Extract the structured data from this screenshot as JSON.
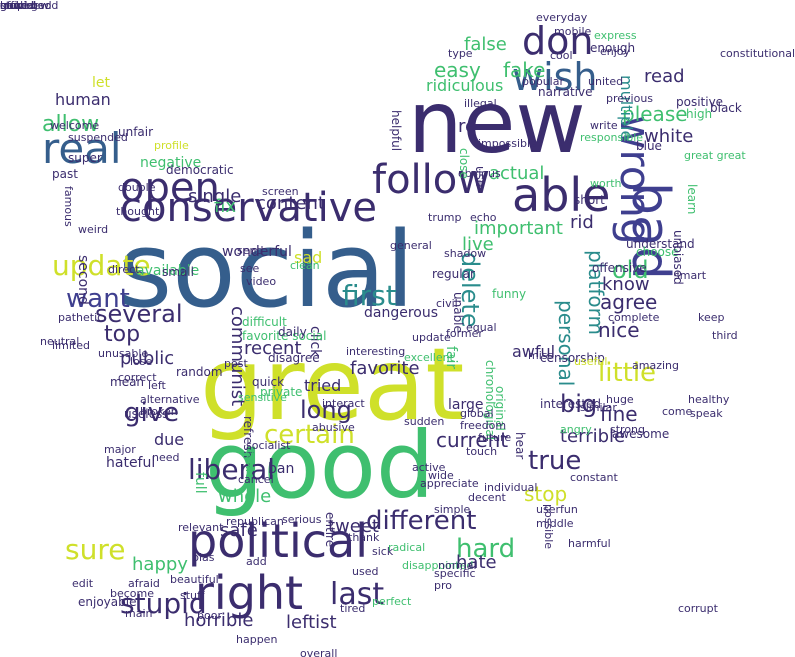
{
  "palette": {
    "purple": "#3b2d6e",
    "indigo": "#3f3f8f",
    "blue": "#355e8c",
    "teal": "#2a8c8c",
    "green": "#3fbf6f",
    "lime": "#cfe02a",
    "lightgreen": "#7ccf4f"
  },
  "words": [
    {
      "text": "social",
      "color": "#355e8c"
    },
    {
      "text": "new",
      "color": "#3b2d6e"
    },
    {
      "text": "great",
      "color": "#cfe02a"
    },
    {
      "text": "good",
      "color": "#3fbf6f"
    },
    {
      "text": "conservative",
      "color": "#3b2d6e"
    },
    {
      "text": "political",
      "color": "#3b2d6e"
    },
    {
      "text": "right",
      "color": "#3b2d6e"
    },
    {
      "text": "follow",
      "color": "#3b2d6e"
    },
    {
      "text": "able",
      "color": "#3b2d6e"
    },
    {
      "text": "bad",
      "color": "#3f3f8f"
    },
    {
      "text": "wrong",
      "color": "#3f3f8f"
    },
    {
      "text": "open",
      "color": "#3b2d6e"
    },
    {
      "text": "real",
      "color": "#355e8c"
    },
    {
      "text": "don",
      "color": "#3b2d6e"
    },
    {
      "text": "wish",
      "color": "#355e8c"
    },
    {
      "text": "different",
      "color": "#3b2d6e"
    },
    {
      "text": "update",
      "color": "#cfe02a"
    },
    {
      "text": "first",
      "color": "#2a8c8c"
    },
    {
      "text": "delete",
      "color": "#2a8c8c"
    },
    {
      "text": "last",
      "color": "#3b2d6e"
    },
    {
      "text": "liberal",
      "color": "#3b2d6e"
    },
    {
      "text": "sure",
      "color": "#cfe02a"
    },
    {
      "text": "certain",
      "color": "#cfe02a"
    },
    {
      "text": "stupid",
      "color": "#3b2d6e"
    },
    {
      "text": "give",
      "color": "#3b2d6e"
    },
    {
      "text": "long",
      "color": "#3b2d6e"
    },
    {
      "text": "true",
      "color": "#3b2d6e"
    },
    {
      "text": "big",
      "color": "#3b2d6e"
    },
    {
      "text": "little",
      "color": "#cfe02a"
    },
    {
      "text": "old",
      "color": "#3fbf6f"
    },
    {
      "text": "hard",
      "color": "#3fbf6f"
    },
    {
      "text": "easy",
      "color": "#3fbf6f"
    },
    {
      "text": "fake",
      "color": "#3fbf6f"
    },
    {
      "text": "allow",
      "color": "#3fbf6f"
    },
    {
      "text": "want",
      "color": "#3f3f8f"
    },
    {
      "text": "top",
      "color": "#3b2d6e"
    },
    {
      "text": "several",
      "color": "#3b2d6e"
    },
    {
      "text": "ridiculous",
      "color": "#3fbf6f"
    },
    {
      "text": "false",
      "color": "#3fbf6f"
    },
    {
      "text": "please",
      "color": "#3fbf6f"
    },
    {
      "text": "read",
      "color": "#3b2d6e"
    },
    {
      "text": "white",
      "color": "#3b2d6e"
    },
    {
      "text": "multiple",
      "color": "#2a8c8c"
    },
    {
      "text": "personal",
      "color": "#2a8c8c"
    },
    {
      "text": "platform",
      "color": "#2a8c8c"
    },
    {
      "text": "agree",
      "color": "#3b2d6e"
    },
    {
      "text": "know",
      "color": "#3b2d6e"
    },
    {
      "text": "nice",
      "color": "#3b2d6e"
    },
    {
      "text": "fine",
      "color": "#3b2d6e"
    },
    {
      "text": "terrible",
      "color": "#3b2d6e"
    },
    {
      "text": "stop",
      "color": "#cfe02a"
    },
    {
      "text": "hate",
      "color": "#3b2d6e"
    },
    {
      "text": "tweet",
      "color": "#3b2d6e"
    },
    {
      "text": "leftist",
      "color": "#3b2d6e"
    },
    {
      "text": "horrible",
      "color": "#3b2d6e"
    },
    {
      "text": "happy",
      "color": "#3fbf6f"
    },
    {
      "text": "whole",
      "color": "#3fbf6f"
    },
    {
      "text": "safe",
      "color": "#3b2d6e"
    },
    {
      "text": "current",
      "color": "#3b2d6e"
    },
    {
      "text": "communist",
      "color": "#3b2d6e"
    },
    {
      "text": "content",
      "color": "#3b2d6e"
    },
    {
      "text": "fix",
      "color": "#3fbf6f"
    },
    {
      "text": "single",
      "color": "#3b2d6e"
    },
    {
      "text": "live",
      "color": "#3fbf6f"
    },
    {
      "text": "important",
      "color": "#3fbf6f"
    },
    {
      "text": "actual",
      "color": "#3fbf6f"
    },
    {
      "text": "rid",
      "color": "#3b2d6e"
    },
    {
      "text": "public",
      "color": "#3b2d6e"
    },
    {
      "text": "recent",
      "color": "#3b2d6e"
    },
    {
      "text": "favorite",
      "color": "#3b2d6e"
    },
    {
      "text": "tried",
      "color": "#3b2d6e"
    },
    {
      "text": "due",
      "color": "#3b2d6e"
    },
    {
      "text": "full",
      "color": "#3fbf6f"
    },
    {
      "text": "click",
      "color": "#3b2d6e"
    },
    {
      "text": "fair",
      "color": "#3fbf6f"
    },
    {
      "text": "sad",
      "color": "#cfe02a"
    },
    {
      "text": "human",
      "color": "#3b2d6e"
    },
    {
      "text": "negative",
      "color": "#3fbf6f"
    },
    {
      "text": "second",
      "color": "#3b2d6e"
    },
    {
      "text": "re",
      "color": "#3b2d6e"
    },
    {
      "text": "awful",
      "color": "#3b2d6e"
    },
    {
      "text": "dangerous",
      "color": "#3b2d6e"
    },
    {
      "text": "hateful",
      "color": "#3b2d6e"
    },
    {
      "text": "wonderful",
      "color": "#3b2d6e"
    },
    {
      "text": "available",
      "color": "#3fbf6f"
    },
    {
      "text": "blue",
      "color": "#3b2d6e"
    },
    {
      "text": "short",
      "color": "#3b2d6e"
    },
    {
      "text": "enough",
      "color": "#3b2d6e"
    },
    {
      "text": "narrative",
      "color": "#3b2d6e"
    },
    {
      "text": "suspended",
      "color": "#3b2d6e"
    },
    {
      "text": "unfair",
      "color": "#3b2d6e"
    },
    {
      "text": "democratic",
      "color": "#3b2d6e"
    },
    {
      "text": "profile",
      "color": "#cfe02a"
    },
    {
      "text": "super",
      "color": "#3b2d6e"
    },
    {
      "text": "past",
      "color": "#3b2d6e"
    },
    {
      "text": "double",
      "color": "#3b2d6e"
    },
    {
      "text": "let",
      "color": "#cfe02a"
    },
    {
      "text": "popular",
      "color": "#3b2d6e"
    },
    {
      "text": "cool",
      "color": "#3b2d6e"
    },
    {
      "text": "type",
      "color": "#3b2d6e"
    },
    {
      "text": "impossible",
      "color": "#3b2d6e"
    },
    {
      "text": "obvious",
      "color": "#3b2d6e"
    },
    {
      "text": "trump",
      "color": "#3b2d6e"
    },
    {
      "text": "echo",
      "color": "#3b2d6e"
    },
    {
      "text": "funny",
      "color": "#3fbf6f"
    },
    {
      "text": "offensive",
      "color": "#3b2d6e"
    },
    {
      "text": "understand",
      "color": "#3b2d6e"
    },
    {
      "text": "choose",
      "color": "#3fbf6f"
    },
    {
      "text": "positive",
      "color": "#3b2d6e"
    },
    {
      "text": "high",
      "color": "#3fbf6f"
    },
    {
      "text": "black",
      "color": "#3b2d6e"
    },
    {
      "text": "worth",
      "color": "#3fbf6f"
    },
    {
      "text": "write",
      "color": "#3b2d6e"
    },
    {
      "text": "learn",
      "color": "#3fbf6f"
    },
    {
      "text": "original",
      "color": "#3fbf6f"
    },
    {
      "text": "unable",
      "color": "#3b2d6e"
    },
    {
      "text": "chronological",
      "color": "#3fbf6f"
    },
    {
      "text": "censorship",
      "color": "#3b2d6e"
    },
    {
      "text": "interested",
      "color": "#3b2d6e"
    },
    {
      "text": "awesome",
      "color": "#3b2d6e"
    },
    {
      "text": "huge",
      "color": "#3b2d6e"
    },
    {
      "text": "useful",
      "color": "#cfe02a"
    },
    {
      "text": "complete",
      "color": "#3b2d6e"
    },
    {
      "text": "amazing",
      "color": "#3b2d6e"
    },
    {
      "text": "hear",
      "color": "#3b2d6e"
    },
    {
      "text": "fun",
      "color": "#3b2d6e"
    },
    {
      "text": "user",
      "color": "#3b2d6e"
    },
    {
      "text": "simple",
      "color": "#3b2d6e"
    },
    {
      "text": "specific",
      "color": "#3b2d6e"
    },
    {
      "text": "possible",
      "color": "#3b2d6e"
    },
    {
      "text": "constant",
      "color": "#3b2d6e"
    },
    {
      "text": "appreciate",
      "color": "#3b2d6e"
    },
    {
      "text": "individual",
      "color": "#3b2d6e"
    },
    {
      "text": "large",
      "color": "#3b2d6e"
    },
    {
      "text": "ban",
      "color": "#3b2d6e"
    },
    {
      "text": "entire",
      "color": "#3b2d6e"
    },
    {
      "text": "refresh",
      "color": "#3b2d6e"
    },
    {
      "text": "toxic",
      "color": "#3fbf6f"
    },
    {
      "text": "difficult",
      "color": "#3fbf6f"
    },
    {
      "text": "favorite social",
      "color": "#3fbf6f"
    },
    {
      "text": "daily",
      "color": "#3b2d6e"
    },
    {
      "text": "regular",
      "color": "#3b2d6e"
    },
    {
      "text": "small",
      "color": "#3b2d6e"
    },
    {
      "text": "disagree",
      "color": "#3b2d6e"
    },
    {
      "text": "useless",
      "color": "#3b2d6e"
    },
    {
      "text": "mean",
      "color": "#3b2d6e"
    },
    {
      "text": "random",
      "color": "#3b2d6e"
    },
    {
      "text": "quick",
      "color": "#3b2d6e"
    },
    {
      "text": "private",
      "color": "#3fbf6f"
    },
    {
      "text": "interesting",
      "color": "#3b2d6e"
    },
    {
      "text": "excellent",
      "color": "#3fbf6f"
    },
    {
      "text": "update",
      "color": "#3b2d6e"
    },
    {
      "text": "sudden",
      "color": "#3b2d6e"
    },
    {
      "text": "interact",
      "color": "#3b2d6e"
    },
    {
      "text": "abusive",
      "color": "#3b2d6e"
    },
    {
      "text": "socialist",
      "color": "#3b2d6e"
    },
    {
      "text": "cancel",
      "color": "#3b2d6e"
    },
    {
      "text": "need",
      "color": "#3b2d6e"
    },
    {
      "text": "major",
      "color": "#3b2d6e"
    },
    {
      "text": "weird",
      "color": "#3b2d6e"
    },
    {
      "text": "direct",
      "color": "#3b2d6e"
    },
    {
      "text": "unusable",
      "color": "#3b2d6e"
    },
    {
      "text": "lose",
      "color": "#3b2d6e"
    },
    {
      "text": "bias",
      "color": "#3b2d6e"
    },
    {
      "text": "stuff",
      "color": "#3b2d6e"
    },
    {
      "text": "beautiful",
      "color": "#3b2d6e"
    },
    {
      "text": "republican",
      "color": "#3b2d6e"
    },
    {
      "text": "serious",
      "color": "#3b2d6e"
    },
    {
      "text": "poor",
      "color": "#3b2d6e"
    },
    {
      "text": "add",
      "color": "#3b2d6e"
    },
    {
      "text": "afraid",
      "color": "#3b2d6e"
    },
    {
      "text": "become",
      "color": "#3b2d6e"
    },
    {
      "text": "enjoyable",
      "color": "#3b2d6e"
    },
    {
      "text": "main",
      "color": "#3b2d6e"
    },
    {
      "text": "happen",
      "color": "#3b2d6e"
    },
    {
      "text": "thank",
      "color": "#3b2d6e"
    },
    {
      "text": "radical",
      "color": "#3fbf6f"
    },
    {
      "text": "sick",
      "color": "#3b2d6e"
    },
    {
      "text": "disappointed",
      "color": "#3fbf6f"
    },
    {
      "text": "normal",
      "color": "#3b2d6e"
    },
    {
      "text": "pro",
      "color": "#3b2d6e"
    },
    {
      "text": "perfect",
      "color": "#3fbf6f"
    },
    {
      "text": "tired",
      "color": "#3b2d6e"
    },
    {
      "text": "edit",
      "color": "#3b2d6e"
    },
    {
      "text": "screen",
      "color": "#3b2d6e"
    },
    {
      "text": "send",
      "color": "#3b2d6e"
    },
    {
      "text": "see",
      "color": "#3b2d6e"
    },
    {
      "text": "video",
      "color": "#3b2d6e"
    },
    {
      "text": "clean",
      "color": "#3fbf6f"
    },
    {
      "text": "famous",
      "color": "#3b2d6e"
    },
    {
      "text": "thought",
      "color": "#3b2d6e"
    },
    {
      "text": "everyday",
      "color": "#3b2d6e"
    },
    {
      "text": "mobile",
      "color": "#3b2d6e"
    },
    {
      "text": "express",
      "color": "#3fbf6f"
    },
    {
      "text": "enjoy",
      "color": "#3b2d6e"
    },
    {
      "text": "united",
      "color": "#3b2d6e"
    },
    {
      "text": "previous",
      "color": "#3b2d6e"
    },
    {
      "text": "illegal",
      "color": "#3b2d6e"
    },
    {
      "text": "corrupt",
      "color": "#3b2d6e"
    },
    {
      "text": "constitutional",
      "color": "#3b2d6e"
    },
    {
      "text": "third",
      "color": "#3b2d6e"
    },
    {
      "text": "keep",
      "color": "#3b2d6e"
    },
    {
      "text": "speak",
      "color": "#3b2d6e"
    },
    {
      "text": "healthy",
      "color": "#3b2d6e"
    },
    {
      "text": "come",
      "color": "#3b2d6e"
    },
    {
      "text": "similar",
      "color": "#3b2d6e"
    },
    {
      "text": "strong",
      "color": "#3b2d6e"
    },
    {
      "text": "decent",
      "color": "#3b2d6e"
    },
    {
      "text": "middle",
      "color": "#3b2d6e"
    },
    {
      "text": "former",
      "color": "#3b2d6e"
    },
    {
      "text": "miss",
      "color": "#3b2d6e"
    },
    {
      "text": "civil",
      "color": "#3b2d6e"
    },
    {
      "text": "equal",
      "color": "#3b2d6e"
    },
    {
      "text": "general",
      "color": "#3b2d6e"
    },
    {
      "text": "shadow",
      "color": "#3b2d6e"
    },
    {
      "text": "global",
      "color": "#3b2d6e"
    },
    {
      "text": "freedom",
      "color": "#3b2d6e"
    },
    {
      "text": "future",
      "color": "#3b2d6e"
    },
    {
      "text": "touch",
      "color": "#3b2d6e"
    },
    {
      "text": "active",
      "color": "#3b2d6e"
    },
    {
      "text": "wide",
      "color": "#3b2d6e"
    },
    {
      "text": "used",
      "color": "#3b2d6e"
    },
    {
      "text": "harmful",
      "color": "#3b2d6e"
    },
    {
      "text": "overall",
      "color": "#3b2d6e"
    },
    {
      "text": "relevant",
      "color": "#3b2d6e"
    },
    {
      "text": "alternative",
      "color": "#3b2d6e"
    },
    {
      "text": "broken",
      "color": "#3b2d6e"
    },
    {
      "text": "left",
      "color": "#3b2d6e"
    },
    {
      "text": "neutral",
      "color": "#3b2d6e"
    },
    {
      "text": "pathetic",
      "color": "#3b2d6e"
    },
    {
      "text": "limited",
      "color": "#3b2d6e"
    },
    {
      "text": "welcome",
      "color": "#3b2d6e"
    },
    {
      "text": "use",
      "color": "#3b2d6e"
    },
    {
      "text": "helpful",
      "color": "#3b2d6e"
    },
    {
      "text": "close",
      "color": "#3fbf6f"
    },
    {
      "text": "unbiased",
      "color": "#3b2d6e"
    },
    {
      "text": "smart",
      "color": "#3b2d6e"
    },
    {
      "text": "post",
      "color": "#3b2d6e"
    },
    {
      "text": "correct",
      "color": "#3b2d6e"
    },
    {
      "text": "sensitive",
      "color": "#3fbf6f"
    },
    {
      "text": "great great",
      "color": "#3fbf6f"
    },
    {
      "text": "angry",
      "color": "#3fbf6f"
    },
    {
      "text": "responsible",
      "color": "#3fbf6f"
    },
    {
      "text": "locked",
      "color": "#3b2d6e"
    },
    {
      "text": "good bad",
      "color": "#3b2d6e"
    },
    {
      "text": "new new",
      "color": "#3b2d6e"
    },
    {
      "text": "good good",
      "color": "#3b2d6e"
    },
    {
      "text": "official",
      "color": "#3b2d6e"
    },
    {
      "text": "stupid",
      "color": "#3b2d6e"
    },
    {
      "text": "truth",
      "color": "#3b2d6e"
    }
  ]
}
